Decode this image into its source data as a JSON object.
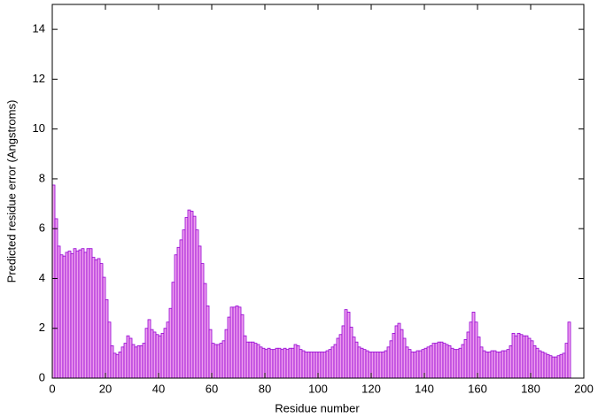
{
  "chart_data": {
    "type": "histogram",
    "xlabel": "Residue number",
    "ylabel": "Predicted residue error (Angstroms)",
    "bins": [
      0,
      1,
      2,
      3,
      4,
      5,
      6,
      7,
      8,
      9,
      10,
      11,
      12,
      13,
      14,
      15,
      16,
      17,
      18,
      19,
      20,
      21,
      22,
      23,
      24,
      25,
      26,
      27,
      28,
      29,
      30,
      31,
      32,
      33,
      34,
      35,
      36,
      37,
      38,
      39,
      40,
      41,
      42,
      43,
      44,
      45,
      46,
      47,
      48,
      49,
      50,
      51,
      52,
      53,
      54,
      55,
      56,
      57,
      58,
      59,
      60,
      61,
      62,
      63,
      64,
      65,
      66,
      67,
      68,
      69,
      70,
      71,
      72,
      73,
      74,
      75,
      76,
      77,
      78,
      79,
      80,
      81,
      82,
      83,
      84,
      85,
      86,
      87,
      88,
      89,
      90,
      91,
      92,
      93,
      94,
      95,
      96,
      97,
      98,
      99,
      100,
      101,
      102,
      103,
      104,
      105,
      106,
      107,
      108,
      109,
      110,
      111,
      112,
      113,
      114,
      115,
      116,
      117,
      118,
      119,
      120,
      121,
      122,
      123,
      124,
      125,
      126,
      127,
      128,
      129,
      130,
      131,
      132,
      133,
      134,
      135,
      136,
      137,
      138,
      139,
      140,
      141,
      142,
      143,
      144,
      145,
      146,
      147,
      148,
      149,
      150,
      151,
      152,
      153,
      154,
      155,
      156,
      157,
      158,
      159,
      160,
      161,
      162,
      163,
      164,
      165,
      166,
      167,
      168,
      169,
      170,
      171,
      172,
      173,
      174,
      175,
      176,
      177,
      178,
      179,
      180,
      181,
      182,
      183,
      184,
      185,
      186,
      187,
      188,
      189,
      190,
      191,
      192,
      193,
      194,
      195
    ],
    "values": [
      7.75,
      6.4,
      5.3,
      4.95,
      4.9,
      5.05,
      5.1,
      5.0,
      5.2,
      5.1,
      5.15,
      5.2,
      5.05,
      5.2,
      5.2,
      4.85,
      4.75,
      4.8,
      4.6,
      4.05,
      3.15,
      2.25,
      1.3,
      1.0,
      0.95,
      1.05,
      1.25,
      1.4,
      1.7,
      1.6,
      1.35,
      1.25,
      1.3,
      1.3,
      1.4,
      2.0,
      2.35,
      1.95,
      1.85,
      1.75,
      1.7,
      1.8,
      2.0,
      2.25,
      2.8,
      3.85,
      4.95,
      5.25,
      5.55,
      5.95,
      6.45,
      6.75,
      6.7,
      6.5,
      5.95,
      5.3,
      4.6,
      3.8,
      2.9,
      1.95,
      1.4,
      1.35,
      1.35,
      1.4,
      1.5,
      1.95,
      2.45,
      2.85,
      2.85,
      2.9,
      2.85,
      2.55,
      1.7,
      1.45,
      1.45,
      1.45,
      1.4,
      1.35,
      1.25,
      1.2,
      1.15,
      1.2,
      1.15,
      1.15,
      1.2,
      1.2,
      1.15,
      1.2,
      1.15,
      1.2,
      1.2,
      1.35,
      1.3,
      1.15,
      1.1,
      1.05,
      1.05,
      1.05,
      1.05,
      1.05,
      1.05,
      1.05,
      1.05,
      1.1,
      1.15,
      1.25,
      1.35,
      1.6,
      1.75,
      2.1,
      2.75,
      2.65,
      2.05,
      1.65,
      1.45,
      1.25,
      1.2,
      1.15,
      1.1,
      1.05,
      1.05,
      1.05,
      1.05,
      1.05,
      1.05,
      1.1,
      1.25,
      1.5,
      1.8,
      2.1,
      2.2,
      1.95,
      1.6,
      1.25,
      1.15,
      1.05,
      1.05,
      1.1,
      1.1,
      1.15,
      1.2,
      1.25,
      1.3,
      1.4,
      1.4,
      1.45,
      1.45,
      1.4,
      1.35,
      1.3,
      1.2,
      1.15,
      1.15,
      1.2,
      1.35,
      1.55,
      1.85,
      2.25,
      2.65,
      2.25,
      1.65,
      1.25,
      1.1,
      1.05,
      1.05,
      1.1,
      1.1,
      1.05,
      1.05,
      1.1,
      1.1,
      1.15,
      1.3,
      1.8,
      1.7,
      1.8,
      1.75,
      1.7,
      1.7,
      1.6,
      1.5,
      1.3,
      1.2,
      1.1,
      1.05,
      1.0,
      0.95,
      0.9,
      0.85,
      0.85,
      0.9,
      0.95,
      1.0,
      1.4,
      2.25
    ],
    "color": "#ee9eee",
    "edge_color": "#9400d3",
    "xlim": [
      0,
      200
    ],
    "xticks": [
      0,
      20,
      40,
      60,
      80,
      100,
      120,
      140,
      160,
      180,
      200
    ],
    "ylim": [
      0,
      15
    ],
    "yticks": [
      0,
      2,
      4,
      6,
      8,
      10,
      12,
      14
    ]
  }
}
